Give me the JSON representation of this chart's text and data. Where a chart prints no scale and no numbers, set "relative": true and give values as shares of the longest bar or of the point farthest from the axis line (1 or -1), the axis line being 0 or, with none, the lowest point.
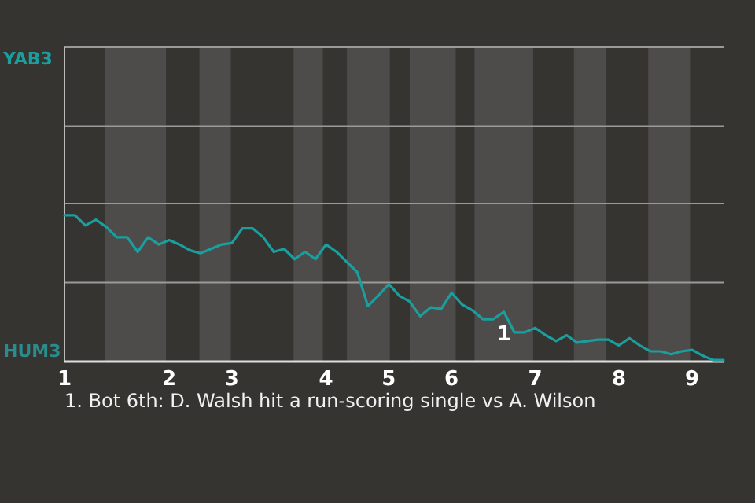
{
  "chart_data": {
    "type": "line",
    "relative": true,
    "color": "#1a9e9e",
    "categories": [
      "1",
      null,
      null,
      null,
      null,
      null,
      null,
      null,
      null,
      null,
      "2",
      null,
      null,
      null,
      null,
      null,
      "3",
      null,
      null,
      null,
      null,
      null,
      null,
      null,
      null,
      "4",
      null,
      null,
      null,
      null,
      null,
      "5",
      null,
      null,
      null,
      null,
      null,
      "6",
      null,
      null,
      null,
      null,
      null,
      null,
      null,
      "7",
      null,
      null,
      null,
      null,
      null,
      null,
      null,
      "8",
      null,
      null,
      null,
      null,
      null,
      null,
      "9",
      null,
      null,
      null
    ],
    "values": [
      1.0,
      1.0,
      0.93,
      0.97,
      0.92,
      0.85,
      0.85,
      0.75,
      0.85,
      0.8,
      0.83,
      0.8,
      0.76,
      0.74,
      0.77,
      0.8,
      0.81,
      0.91,
      0.91,
      0.85,
      0.75,
      0.77,
      0.7,
      0.75,
      0.7,
      0.8,
      0.75,
      0.68,
      0.61,
      0.38,
      0.45,
      0.53,
      0.45,
      0.41,
      0.31,
      0.37,
      0.36,
      0.47,
      0.39,
      0.35,
      0.29,
      0.29,
      0.34,
      0.2,
      0.2,
      0.23,
      0.18,
      0.14,
      0.18,
      0.13,
      0.14,
      0.15,
      0.15,
      0.11,
      0.16,
      0.11,
      0.07,
      0.07,
      0.05,
      0.07,
      0.08,
      0.04,
      0.01,
      0.01
    ],
    "ref_lines": [
      {
        "axis": "y",
        "value": 0.54,
        "color": "#9a9a9a"
      },
      {
        "axis": "y",
        "value": 1.08,
        "color": "#9a9a9a"
      },
      {
        "axis": "y",
        "value": 1.61,
        "color": "#9a9a9a"
      },
      {
        "axis": "y",
        "value": 2.15,
        "color": "#9a9a9a"
      }
    ],
    "annotations": [
      "YAB3",
      "HUM3",
      "1. Bot 6th: D. Walsh hit a run-scoring single vs A. Wilson",
      "1"
    ]
  }
}
